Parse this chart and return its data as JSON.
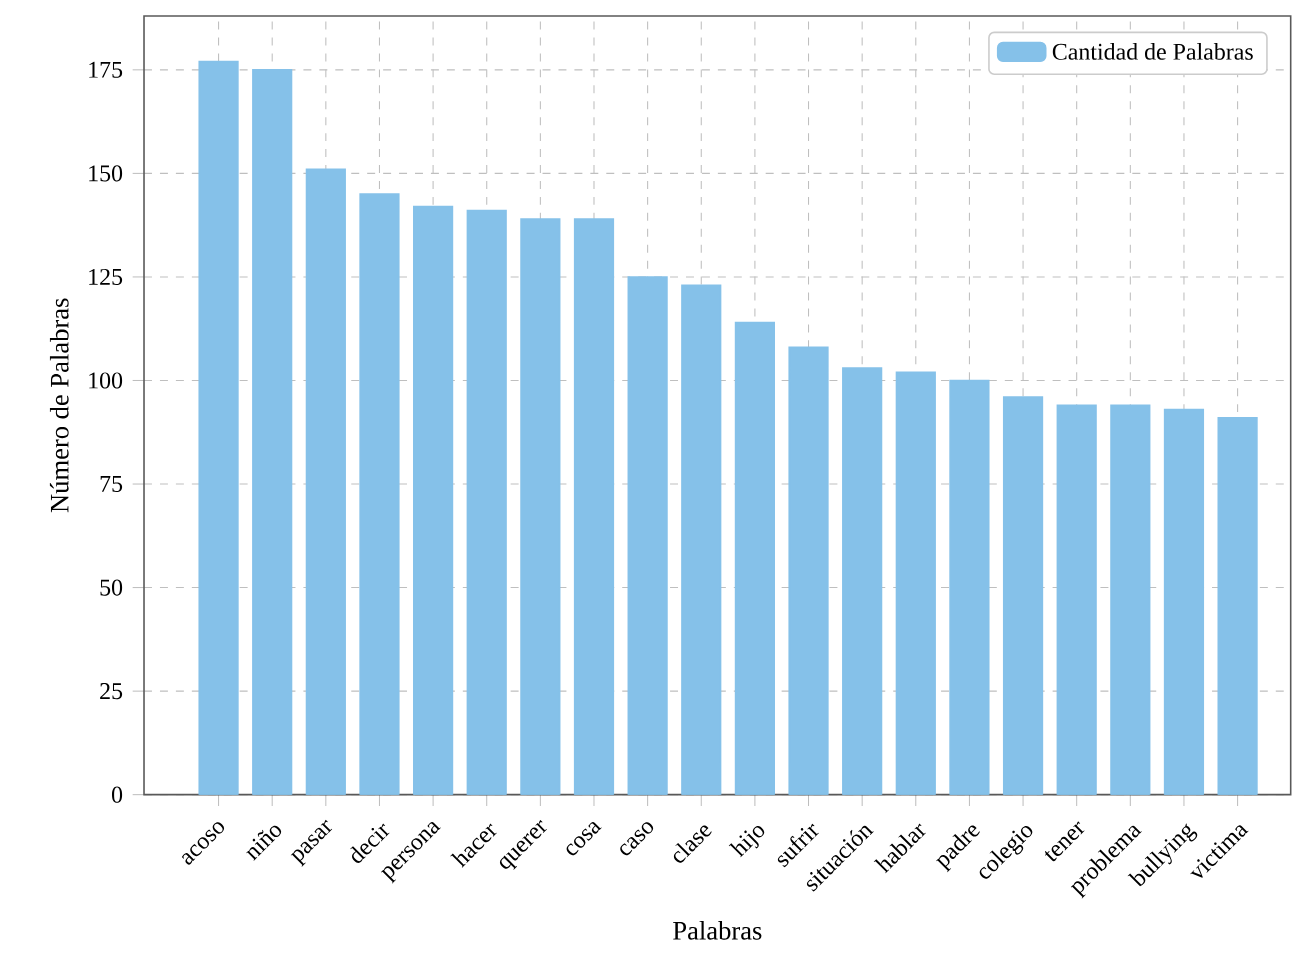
{
  "chart_data": {
    "type": "bar",
    "xlabel": "Palabras",
    "ylabel": "Número de Palabras",
    "categories": [
      "acoso",
      "niño",
      "pasar",
      "decir",
      "persona",
      "hacer",
      "querer",
      "cosa",
      "caso",
      "clase",
      "hijo",
      "sufrir",
      "situación",
      "hablar",
      "padre",
      "colegio",
      "tener",
      "problema",
      "bullying",
      "victima"
    ],
    "series": [
      {
        "name": "Cantidad de Palabras",
        "color": "#85c1e9",
        "values": [
          177,
          175,
          151,
          145,
          142,
          141,
          139,
          139,
          125,
          123,
          114,
          108,
          103,
          102,
          100,
          96,
          94,
          94,
          93,
          91
        ]
      }
    ],
    "ylim": [
      0,
      188
    ],
    "yticks": [
      0,
      25,
      50,
      75,
      100,
      125,
      150,
      175
    ],
    "grid": true,
    "legend": "top right"
  }
}
